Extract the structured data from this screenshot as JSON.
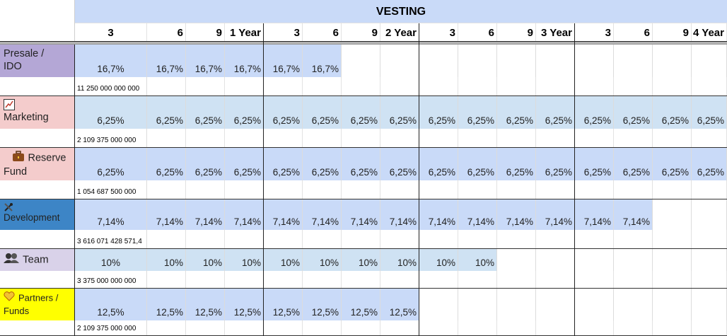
{
  "header": {
    "vesting_label": "VESTING",
    "columns": [
      "3",
      "6",
      "9",
      "1 Year",
      "3",
      "6",
      "9",
      "2 Year",
      "3",
      "6",
      "9",
      "3 Year",
      "3",
      "6",
      "9",
      "4 Year"
    ]
  },
  "rows": [
    {
      "name_lines": [
        "Presale /",
        "IDO"
      ],
      "icon": "",
      "label_bg": "#b4a7d6",
      "pct_bg": "#c9daf8",
      "values": [
        "16,7%",
        "16,7%",
        "16,7%",
        "16,7%",
        "16,7%",
        "16,7%"
      ],
      "amount": "11 250 000 000 000"
    },
    {
      "name_lines": [
        "Marketing"
      ],
      "icon": "chart-checkbox-icon",
      "label_bg": "#f4cccc",
      "pct_bg": "#cfe2f3",
      "values": [
        "6,25%",
        "6,25%",
        "6,25%",
        "6,25%",
        "6,25%",
        "6,25%",
        "6,25%",
        "6,25%",
        "6,25%",
        "6,25%",
        "6,25%",
        "6,25%",
        "6,25%",
        "6,25%",
        "6,25%",
        "6,25%"
      ],
      "amount": "2 109 375 000 000"
    },
    {
      "name_lines": [
        "Reserve",
        "Fund"
      ],
      "icon": "briefcase-icon",
      "label_bg": "#f4cccc",
      "pct_bg": "#c9daf8",
      "values": [
        "6,25%",
        "6,25%",
        "6,25%",
        "6,25%",
        "6,25%",
        "6,25%",
        "6,25%",
        "6,25%",
        "6,25%",
        "6,25%",
        "6,25%",
        "6,25%",
        "6,25%",
        "6,25%",
        "6,25%",
        "6,25%"
      ],
      "amount": "1 054 687 500 000"
    },
    {
      "name_lines": [
        "Development"
      ],
      "icon": "tools-icon",
      "label_bg": "#3d85c6",
      "pct_bg": "#c9daf8",
      "values": [
        "7,14%",
        "7,14%",
        "7,14%",
        "7,14%",
        "7,14%",
        "7,14%",
        "7,14%",
        "7,14%",
        "7,14%",
        "7,14%",
        "7,14%",
        "7,14%",
        "7,14%",
        "7,14%"
      ],
      "amount": "3 616 071 428 571,4"
    },
    {
      "name_lines": [
        "Team"
      ],
      "icon": "people-icon",
      "label_bg": "#d9d2e9",
      "pct_bg": "#cfe2f3",
      "values": [
        "10%",
        "10%",
        "10%",
        "10%",
        "10%",
        "10%",
        "10%",
        "10%",
        "10%",
        "10%"
      ],
      "amount": "3 375 000 000 000"
    },
    {
      "name_lines": [
        "Partners /",
        "Funds"
      ],
      "icon": "heart-icon",
      "label_bg": "#ffff00",
      "pct_bg": "#c9daf8",
      "values": [
        "12,5%",
        "12,5%",
        "12,5%",
        "12,5%",
        "12,5%",
        "12,5%",
        "12,5%",
        "12,5%"
      ],
      "amount": "2 109 375 000 000"
    }
  ]
}
